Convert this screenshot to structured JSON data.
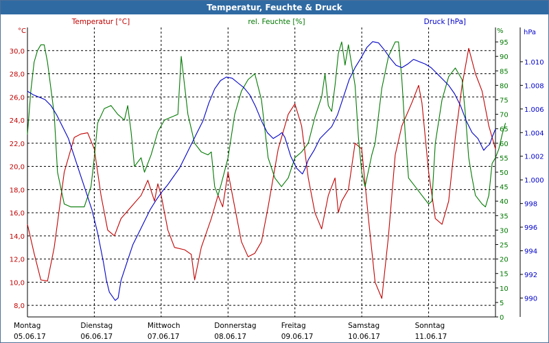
{
  "window": {
    "title": "Temperatur, Feuchte & Druck"
  },
  "colors": {
    "temperature": "#c00000",
    "humidity": "#007800",
    "pressure": "#0000c8",
    "grid": "#000000",
    "title_bg": "#2f6aa3"
  },
  "chart_data": {
    "type": "line",
    "title": "Temperatur, Feuchte & Druck",
    "x_days": [
      {
        "weekday": "Montag",
        "date": "05.06.17"
      },
      {
        "weekday": "Dienstag",
        "date": "06.06.17"
      },
      {
        "weekday": "Mittwoch",
        "date": "07.06.17"
      },
      {
        "weekday": "Donnerstag",
        "date": "08.06.17"
      },
      {
        "weekday": "Freitag",
        "date": "09.06.17"
      },
      {
        "weekday": "Samstag",
        "date": "10.06.17"
      },
      {
        "weekday": "Sonntag",
        "date": "11.06.17"
      }
    ],
    "x_range_days": [
      0,
      7.0
    ],
    "axes": {
      "temperature": {
        "label": "Temperatur [°C]",
        "unit": "°C",
        "range": [
          7,
          32
        ],
        "ticks": [
          "8,0",
          "10,0",
          "12,0",
          "14,0",
          "16,0",
          "18,0",
          "20,0",
          "22,0",
          "24,0",
          "26,0",
          "28,0",
          "30,0"
        ],
        "tick_values": [
          8,
          10,
          12,
          14,
          16,
          18,
          20,
          22,
          24,
          26,
          28,
          30
        ]
      },
      "humidity": {
        "label": "rel. Feuchte [%]",
        "unit": "%",
        "range": [
          0,
          100
        ],
        "ticks": [
          "0",
          "5",
          "10",
          "15",
          "20",
          "25",
          "30",
          "35",
          "40",
          "45",
          "50",
          "55",
          "60",
          "65",
          "70",
          "75",
          "80",
          "85",
          "90",
          "95"
        ],
        "tick_values": [
          0,
          5,
          10,
          15,
          20,
          25,
          30,
          35,
          40,
          45,
          50,
          55,
          60,
          65,
          70,
          75,
          80,
          85,
          90,
          95
        ]
      },
      "pressure": {
        "label": "Druck [hPa]",
        "unit": "hPa",
        "range": [
          988.4,
          1012.9
        ],
        "ticks": [
          "990",
          "992",
          "994",
          "996",
          "998",
          "1.000",
          "1.002",
          "1.004",
          "1.006",
          "1.008",
          "1.010"
        ],
        "tick_values": [
          990,
          992,
          994,
          996,
          998,
          1000,
          1002,
          1004,
          1006,
          1008,
          1010
        ]
      }
    },
    "series": [
      {
        "name": "Temperatur",
        "axis": "temperature",
        "color": "#c00000",
        "points": [
          [
            0,
            15.0
          ],
          [
            0.1,
            12.5
          ],
          [
            0.2,
            10.2
          ],
          [
            0.3,
            10.1
          ],
          [
            0.4,
            13.0
          ],
          [
            0.55,
            19.5
          ],
          [
            0.7,
            22.5
          ],
          [
            0.8,
            22.8
          ],
          [
            0.9,
            22.9
          ],
          [
            1.0,
            21.5
          ],
          [
            1.1,
            17.5
          ],
          [
            1.2,
            14.5
          ],
          [
            1.3,
            14.0
          ],
          [
            1.4,
            15.5
          ],
          [
            1.55,
            16.5
          ],
          [
            1.7,
            17.5
          ],
          [
            1.8,
            18.8
          ],
          [
            1.9,
            17.0
          ],
          [
            1.95,
            18.5
          ],
          [
            2.0,
            17.5
          ],
          [
            2.1,
            14.5
          ],
          [
            2.2,
            13.0
          ],
          [
            2.35,
            12.8
          ],
          [
            2.45,
            12.4
          ],
          [
            2.5,
            10.2
          ],
          [
            2.6,
            13.0
          ],
          [
            2.75,
            15.5
          ],
          [
            2.85,
            17.5
          ],
          [
            2.92,
            16.5
          ],
          [
            3.0,
            19.5
          ],
          [
            3.1,
            16.5
          ],
          [
            3.2,
            13.5
          ],
          [
            3.3,
            12.2
          ],
          [
            3.4,
            12.5
          ],
          [
            3.5,
            13.5
          ],
          [
            3.6,
            16.5
          ],
          [
            3.75,
            21.5
          ],
          [
            3.9,
            24.5
          ],
          [
            4.0,
            25.4
          ],
          [
            4.1,
            23.5
          ],
          [
            4.2,
            19.0
          ],
          [
            4.3,
            16.0
          ],
          [
            4.4,
            14.6
          ],
          [
            4.5,
            17.5
          ],
          [
            4.6,
            19.0
          ],
          [
            4.65,
            16.0
          ],
          [
            4.7,
            17.0
          ],
          [
            4.8,
            18.0
          ],
          [
            4.9,
            22.0
          ],
          [
            5.0,
            21.5
          ],
          [
            5.1,
            15.5
          ],
          [
            5.2,
            10.0
          ],
          [
            5.3,
            8.6
          ],
          [
            5.4,
            14.0
          ],
          [
            5.5,
            21.0
          ],
          [
            5.6,
            23.5
          ],
          [
            5.75,
            25.5
          ],
          [
            5.85,
            27.0
          ],
          [
            5.9,
            25.5
          ],
          [
            6.0,
            19.5
          ],
          [
            6.1,
            15.5
          ],
          [
            6.2,
            15.0
          ],
          [
            6.3,
            17.0
          ],
          [
            6.4,
            22.5
          ],
          [
            6.5,
            27.0
          ],
          [
            6.6,
            30.2
          ],
          [
            6.7,
            28.0
          ],
          [
            6.8,
            26.5
          ],
          [
            6.9,
            23.5
          ],
          [
            7.0,
            21.5
          ]
        ]
      },
      {
        "name": "rel. Feuchte",
        "axis": "humidity",
        "color": "#007800",
        "points": [
          [
            0,
            63
          ],
          [
            0.05,
            78
          ],
          [
            0.1,
            88
          ],
          [
            0.15,
            92
          ],
          [
            0.2,
            94
          ],
          [
            0.25,
            94
          ],
          [
            0.3,
            88
          ],
          [
            0.4,
            70
          ],
          [
            0.45,
            50
          ],
          [
            0.55,
            39
          ],
          [
            0.65,
            38
          ],
          [
            0.75,
            38
          ],
          [
            0.85,
            38
          ],
          [
            0.95,
            45
          ],
          [
            1.0,
            55
          ],
          [
            1.05,
            67
          ],
          [
            1.15,
            72
          ],
          [
            1.25,
            73
          ],
          [
            1.35,
            70
          ],
          [
            1.45,
            68
          ],
          [
            1.5,
            73
          ],
          [
            1.55,
            64
          ],
          [
            1.6,
            52
          ],
          [
            1.7,
            55
          ],
          [
            1.75,
            50
          ],
          [
            1.85,
            56
          ],
          [
            1.95,
            64
          ],
          [
            2.05,
            68
          ],
          [
            2.15,
            69
          ],
          [
            2.25,
            70
          ],
          [
            2.3,
            90
          ],
          [
            2.4,
            70
          ],
          [
            2.5,
            60
          ],
          [
            2.6,
            57
          ],
          [
            2.7,
            56
          ],
          [
            2.75,
            57
          ],
          [
            2.8,
            45
          ],
          [
            2.85,
            42
          ],
          [
            2.9,
            46
          ],
          [
            3.0,
            55
          ],
          [
            3.1,
            70
          ],
          [
            3.2,
            78
          ],
          [
            3.3,
            82
          ],
          [
            3.4,
            84
          ],
          [
            3.5,
            75
          ],
          [
            3.6,
            55
          ],
          [
            3.7,
            48
          ],
          [
            3.8,
            45
          ],
          [
            3.9,
            48
          ],
          [
            4.0,
            55
          ],
          [
            4.1,
            57
          ],
          [
            4.2,
            60
          ],
          [
            4.3,
            69
          ],
          [
            4.4,
            76
          ],
          [
            4.45,
            84
          ],
          [
            4.5,
            73
          ],
          [
            4.55,
            71
          ],
          [
            4.6,
            80
          ],
          [
            4.65,
            91
          ],
          [
            4.7,
            95
          ],
          [
            4.75,
            87
          ],
          [
            4.8,
            94
          ],
          [
            4.9,
            80
          ],
          [
            4.95,
            62
          ],
          [
            5.0,
            50
          ],
          [
            5.05,
            45
          ],
          [
            5.15,
            56
          ],
          [
            5.2,
            60
          ],
          [
            5.3,
            79
          ],
          [
            5.4,
            90
          ],
          [
            5.5,
            95
          ],
          [
            5.55,
            95
          ],
          [
            5.6,
            82
          ],
          [
            5.65,
            63
          ],
          [
            5.7,
            48
          ],
          [
            5.8,
            45
          ],
          [
            5.9,
            42
          ],
          [
            6.0,
            39
          ],
          [
            6.05,
            40
          ],
          [
            6.1,
            60
          ],
          [
            6.2,
            75
          ],
          [
            6.3,
            83
          ],
          [
            6.4,
            86
          ],
          [
            6.5,
            82
          ],
          [
            6.55,
            70
          ],
          [
            6.6,
            55
          ],
          [
            6.65,
            48
          ],
          [
            6.7,
            42
          ],
          [
            6.8,
            39
          ],
          [
            6.85,
            38
          ],
          [
            6.9,
            42
          ],
          [
            6.95,
            53
          ],
          [
            7.0,
            55
          ],
          [
            7.05,
            58
          ],
          [
            7.1,
            63
          ],
          [
            7.15,
            67
          ]
        ]
      },
      {
        "name": "Druck",
        "axis": "pressure",
        "color": "#0000c8",
        "points": [
          [
            0,
            1007.5
          ],
          [
            0.1,
            1007.2
          ],
          [
            0.2,
            1007.0
          ],
          [
            0.3,
            1006.8
          ],
          [
            0.4,
            1006.3
          ],
          [
            0.5,
            1005.5
          ],
          [
            0.6,
            1004.5
          ],
          [
            0.7,
            1003.5
          ],
          [
            0.8,
            1002.0
          ],
          [
            0.9,
            1000.5
          ],
          [
            1.0,
            999.0
          ],
          [
            1.1,
            997.5
          ],
          [
            1.2,
            995.5
          ],
          [
            1.3,
            993.0
          ],
          [
            1.35,
            991.5
          ],
          [
            1.4,
            990.5
          ],
          [
            1.5,
            989.8
          ],
          [
            1.55,
            990.0
          ],
          [
            1.6,
            991.5
          ],
          [
            1.7,
            993.0
          ],
          [
            1.8,
            994.5
          ],
          [
            1.9,
            995.5
          ],
          [
            2.0,
            996.5
          ],
          [
            2.1,
            997.5
          ],
          [
            2.2,
            998.3
          ],
          [
            2.3,
            999.0
          ],
          [
            2.4,
            999.6
          ],
          [
            2.5,
            1000.3
          ],
          [
            2.6,
            1001.0
          ],
          [
            2.7,
            1002.0
          ],
          [
            2.8,
            1003.0
          ],
          [
            2.9,
            1004.0
          ],
          [
            3.0,
            1005.0
          ],
          [
            3.1,
            1006.5
          ],
          [
            3.2,
            1007.7
          ],
          [
            3.3,
            1008.4
          ],
          [
            3.4,
            1008.7
          ],
          [
            3.5,
            1008.6
          ],
          [
            3.6,
            1008.2
          ],
          [
            3.7,
            1007.8
          ],
          [
            3.8,
            1007.2
          ],
          [
            3.9,
            1006.2
          ],
          [
            4.0,
            1005.0
          ],
          [
            4.1,
            1004.0
          ],
          [
            4.2,
            1003.5
          ],
          [
            4.3,
            1003.8
          ],
          [
            4.35,
            1004.0
          ],
          [
            4.4,
            1003.6
          ],
          [
            4.5,
            1002.0
          ],
          [
            4.6,
            1001.0
          ],
          [
            4.7,
            1000.5
          ],
          [
            4.75,
            1001.0
          ],
          [
            4.8,
            1001.7
          ],
          [
            4.9,
            1002.5
          ],
          [
            5.0,
            1003.5
          ],
          [
            5.1,
            1004.0
          ],
          [
            5.2,
            1004.5
          ],
          [
            5.3,
            1005.5
          ],
          [
            5.4,
            1007.0
          ],
          [
            5.5,
            1008.5
          ],
          [
            5.6,
            1009.5
          ],
          [
            5.7,
            1010.3
          ],
          [
            5.8,
            1011.2
          ],
          [
            5.9,
            1011.7
          ],
          [
            6.0,
            1011.6
          ],
          [
            6.1,
            1011.0
          ],
          [
            6.2,
            1010.3
          ],
          [
            6.3,
            1009.7
          ],
          [
            6.4,
            1009.5
          ],
          [
            6.5,
            1009.8
          ],
          [
            6.6,
            1010.2
          ],
          [
            6.7,
            1010.0
          ],
          [
            6.8,
            1009.8
          ],
          [
            6.9,
            1009.5
          ],
          [
            7.0,
            1009.0
          ],
          [
            7.1,
            1008.5
          ],
          [
            7.2,
            1008.0
          ],
          [
            7.3,
            1007.3
          ],
          [
            7.4,
            1006.3
          ],
          [
            7.5,
            1005.0
          ],
          [
            7.6,
            1004.0
          ],
          [
            7.7,
            1003.5
          ],
          [
            7.8,
            1002.5
          ],
          [
            7.85,
            1002.8
          ],
          [
            7.9,
            1003.0
          ],
          [
            7.95,
            1003.7
          ],
          [
            8.0,
            1004.3
          ]
        ]
      }
    ],
    "pressure_x_scale": 0.875,
    "grid": true
  }
}
